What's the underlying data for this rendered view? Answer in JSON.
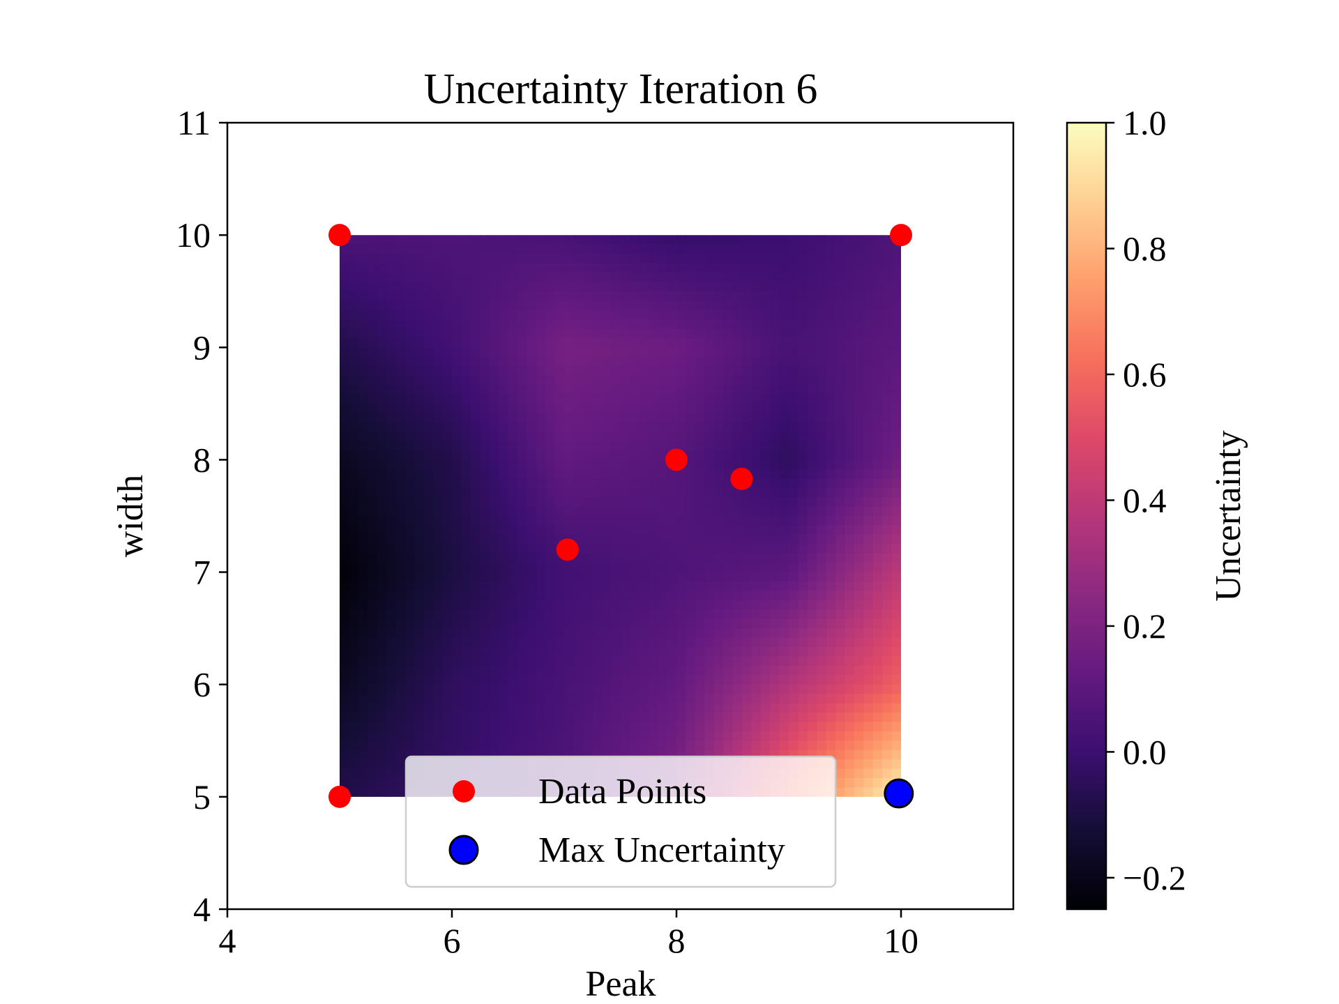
{
  "chart_data": {
    "type": "heatmap",
    "title": "Uncertainty Iteration 6",
    "xlabel": "Peak",
    "ylabel": "width",
    "xlim": [
      4,
      11
    ],
    "ylim": [
      4,
      11
    ],
    "x_ticks": [
      "4",
      "6",
      "8",
      "10"
    ],
    "y_ticks": [
      "4",
      "5",
      "6",
      "7",
      "8",
      "9",
      "10",
      "11"
    ],
    "heatmap": {
      "x_range": [
        5,
        10
      ],
      "y_range": [
        5,
        10
      ],
      "colormap": "magma",
      "description_grid": {
        "x": [
          5,
          6,
          7,
          8,
          9,
          10
        ],
        "y": [
          10,
          9,
          8,
          7,
          6,
          5
        ],
        "z": [
          [
            0.05,
            0.06,
            0.04,
            -0.02,
            0.0,
            0.06
          ],
          [
            -0.08,
            0.02,
            0.18,
            0.15,
            0.04,
            0.1
          ],
          [
            -0.18,
            -0.08,
            0.12,
            0.08,
            -0.04,
            0.16
          ],
          [
            -0.24,
            -0.1,
            0.02,
            0.06,
            0.1,
            0.4
          ],
          [
            -0.18,
            -0.04,
            0.04,
            0.12,
            0.36,
            0.58
          ],
          [
            -0.08,
            -0.02,
            0.06,
            0.2,
            0.62,
            0.98
          ]
        ]
      }
    },
    "colorbar": {
      "label": "Uncertainty",
      "range": [
        -0.25,
        1.0
      ],
      "ticks": [
        "−0.2",
        "0.0",
        "0.2",
        "0.4",
        "0.6",
        "0.8",
        "1.0"
      ],
      "tick_values": [
        -0.2,
        0.0,
        0.2,
        0.4,
        0.6,
        0.8,
        1.0
      ]
    },
    "series": [
      {
        "name": "Data Points",
        "kind": "scatter",
        "color": "#ff0000",
        "points": [
          [
            5,
            10
          ],
          [
            10,
            10
          ],
          [
            5,
            5
          ],
          [
            8,
            8
          ],
          [
            8.58,
            7.83
          ],
          [
            7.03,
            7.2
          ]
        ]
      },
      {
        "name": "Max Uncertainty",
        "kind": "scatter",
        "color": "#0000ff",
        "edgecolor": "#000000",
        "points": [
          [
            9.98,
            5.03
          ]
        ]
      }
    ],
    "legend": {
      "placement": "lower-center",
      "entries": [
        "Data Points",
        "Max Uncertainty"
      ]
    }
  }
}
